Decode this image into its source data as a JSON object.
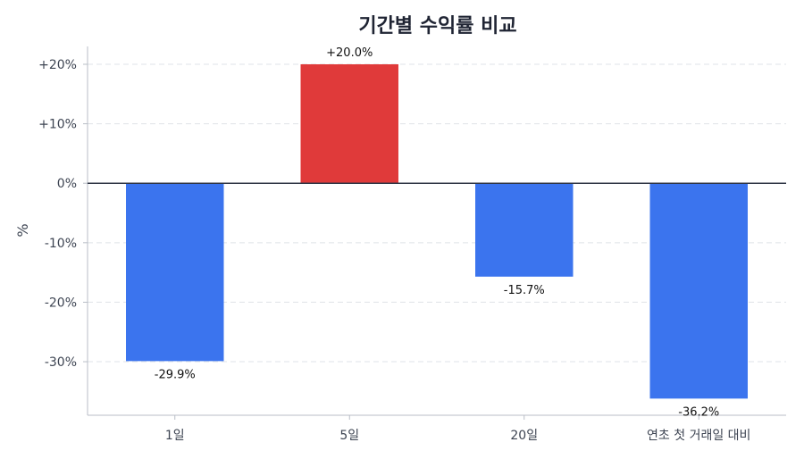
{
  "chart_data": {
    "type": "bar",
    "title": "기간별 수익률 비교",
    "xlabel": "",
    "ylabel": "%",
    "categories": [
      "1일",
      "5일",
      "20일",
      "연초 첫 거래일 대비"
    ],
    "values": [
      -29.9,
      20.0,
      -15.7,
      -36.2
    ],
    "value_labels": [
      "-29.9%",
      "+20.0%",
      "-15.7%",
      "-36.2%"
    ],
    "ylim": [
      -39,
      23
    ],
    "yticks": [
      20,
      10,
      0,
      -10,
      -20,
      -30
    ],
    "ytick_labels": [
      "+20%",
      "+10%",
      "0%",
      "-10%",
      "-20%",
      "-30%"
    ],
    "grid": true,
    "colors": {
      "positive": "#e03a3a",
      "negative": "#3b74ee"
    }
  }
}
